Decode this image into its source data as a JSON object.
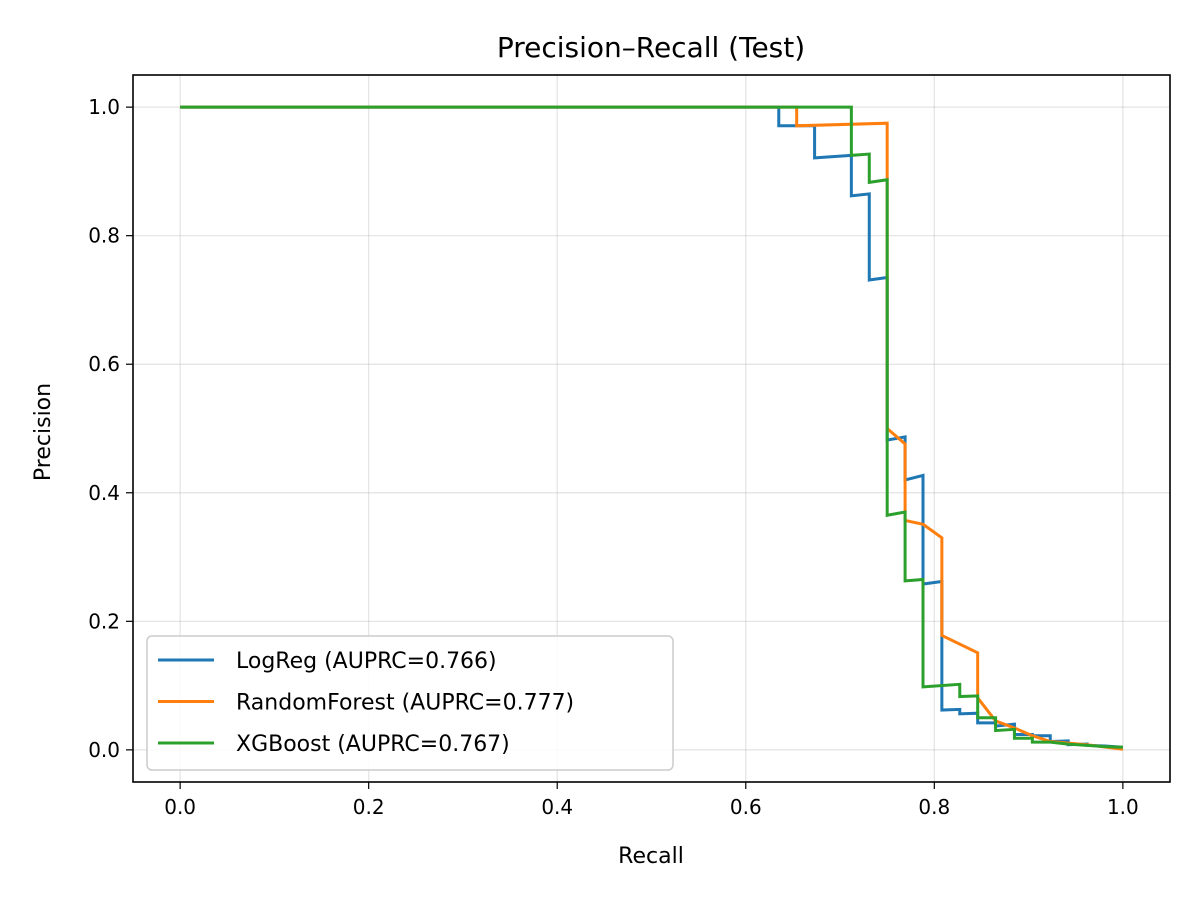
{
  "chart_data": {
    "type": "line",
    "title": "Precision–Recall (Test)",
    "xlabel": "Recall",
    "ylabel": "Precision",
    "xlim": [
      -0.05,
      1.05
    ],
    "ylim": [
      -0.05,
      1.05
    ],
    "xticks": [
      "0.0",
      "0.2",
      "0.4",
      "0.6",
      "0.8",
      "1.0"
    ],
    "yticks": [
      "0.0",
      "0.2",
      "0.4",
      "0.6",
      "0.8",
      "1.0"
    ],
    "xtick_values": [
      0.0,
      0.2,
      0.4,
      0.6,
      0.8,
      1.0
    ],
    "ytick_values": [
      0.0,
      0.2,
      0.4,
      0.6,
      0.8,
      1.0
    ],
    "grid": true,
    "legend_position": "bottom-left",
    "series": [
      {
        "name": "LogReg (AUPRC=0.766)",
        "color": "#1f77b4",
        "points": [
          [
            0.0,
            1.0
          ],
          [
            0.635,
            1.0
          ],
          [
            0.635,
            0.971
          ],
          [
            0.673,
            0.971
          ],
          [
            0.673,
            0.921
          ],
          [
            0.712,
            0.925
          ],
          [
            0.712,
            0.862
          ],
          [
            0.731,
            0.865
          ],
          [
            0.731,
            0.731
          ],
          [
            0.75,
            0.735
          ],
          [
            0.75,
            0.482
          ],
          [
            0.769,
            0.487
          ],
          [
            0.769,
            0.42
          ],
          [
            0.788,
            0.427
          ],
          [
            0.788,
            0.258
          ],
          [
            0.808,
            0.262
          ],
          [
            0.808,
            0.062
          ],
          [
            0.827,
            0.063
          ],
          [
            0.827,
            0.056
          ],
          [
            0.846,
            0.057
          ],
          [
            0.846,
            0.042
          ],
          [
            0.865,
            0.042
          ],
          [
            0.865,
            0.037
          ],
          [
            0.885,
            0.04
          ],
          [
            0.885,
            0.024
          ],
          [
            0.904,
            0.024
          ],
          [
            0.904,
            0.022
          ],
          [
            0.923,
            0.022
          ],
          [
            0.923,
            0.013
          ],
          [
            0.942,
            0.014
          ],
          [
            0.942,
            0.008
          ],
          [
            0.962,
            0.009
          ],
          [
            0.962,
            0.007
          ],
          [
            0.981,
            0.006
          ],
          [
            1.0,
            0.004
          ]
        ]
      },
      {
        "name": "RandomForest (AUPRC=0.777)",
        "color": "#ff7f0e",
        "points": [
          [
            0.0,
            1.0
          ],
          [
            0.654,
            1.0
          ],
          [
            0.654,
            0.971
          ],
          [
            0.75,
            0.975
          ],
          [
            0.75,
            0.5
          ],
          [
            0.769,
            0.476
          ],
          [
            0.769,
            0.357
          ],
          [
            0.788,
            0.351
          ],
          [
            0.808,
            0.33
          ],
          [
            0.808,
            0.178
          ],
          [
            0.846,
            0.151
          ],
          [
            0.846,
            0.081
          ],
          [
            0.865,
            0.045
          ],
          [
            0.885,
            0.034
          ],
          [
            0.904,
            0.022
          ],
          [
            0.923,
            0.013
          ],
          [
            0.962,
            0.008
          ],
          [
            1.0,
            0.001
          ]
        ]
      },
      {
        "name": "XGBoost (AUPRC=0.767)",
        "color": "#2ca02c",
        "points": [
          [
            0.0,
            1.0
          ],
          [
            0.712,
            1.0
          ],
          [
            0.712,
            0.925
          ],
          [
            0.731,
            0.927
          ],
          [
            0.731,
            0.883
          ],
          [
            0.75,
            0.887
          ],
          [
            0.75,
            0.365
          ],
          [
            0.769,
            0.37
          ],
          [
            0.769,
            0.263
          ],
          [
            0.788,
            0.265
          ],
          [
            0.788,
            0.098
          ],
          [
            0.827,
            0.102
          ],
          [
            0.827,
            0.083
          ],
          [
            0.846,
            0.084
          ],
          [
            0.846,
            0.05
          ],
          [
            0.865,
            0.05
          ],
          [
            0.865,
            0.03
          ],
          [
            0.885,
            0.032
          ],
          [
            0.885,
            0.018
          ],
          [
            0.904,
            0.018
          ],
          [
            0.904,
            0.012
          ],
          [
            0.923,
            0.012
          ],
          [
            0.942,
            0.009
          ],
          [
            0.962,
            0.007
          ],
          [
            0.981,
            0.005
          ],
          [
            1.0,
            0.004
          ]
        ]
      }
    ]
  }
}
